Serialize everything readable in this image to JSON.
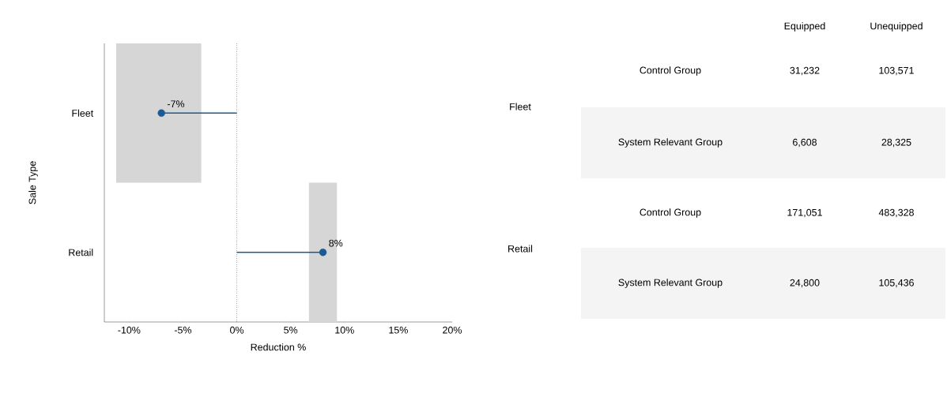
{
  "chart_data": [
    {
      "type": "lollipop",
      "orientation": "horizontal",
      "xlabel": "Reduction %",
      "ylabel": "Sale Type",
      "categories": [
        "Fleet",
        "Retail"
      ],
      "series": [
        {
          "type": "bar",
          "color": "#d6d6d6",
          "base": [
            -11.2,
            6.7
          ],
          "values": [
            7.9,
            2.6
          ]
        },
        {
          "type": "lollipop",
          "color": "#1a5a96",
          "values": [
            -7,
            8
          ],
          "value_labels": [
            "-7%",
            "8%"
          ]
        }
      ],
      "xlim": [
        -12.3,
        20
      ],
      "xticks": [
        {
          "value": -10,
          "label": "-10%"
        },
        {
          "value": -5,
          "label": "-5%"
        },
        {
          "value": 0,
          "label": "0%"
        },
        {
          "value": 5,
          "label": "5%"
        },
        {
          "value": 10,
          "label": "10%"
        },
        {
          "value": 15,
          "label": "15%"
        },
        {
          "value": 20,
          "label": "20%"
        }
      ],
      "ref_lines": [
        {
          "axis": "x",
          "value": 0,
          "color": "#000000",
          "line_style": "dotted"
        }
      ],
      "grid": false
    },
    {
      "type": "other",
      "categories": [
        "Equipped",
        "Unequipped"
      ],
      "y_categories": [
        "Control Group",
        "System Relevant Group",
        "Control Group",
        "System Relevant Group"
      ],
      "y2_categories": [
        "Fleet",
        "Retail"
      ],
      "cell_labels": [
        [
          "31,232",
          "103,571"
        ],
        [
          "6,608",
          "28,325"
        ],
        [
          "171,051",
          "483,328"
        ],
        [
          "24,800",
          "105,436"
        ]
      ]
    }
  ]
}
